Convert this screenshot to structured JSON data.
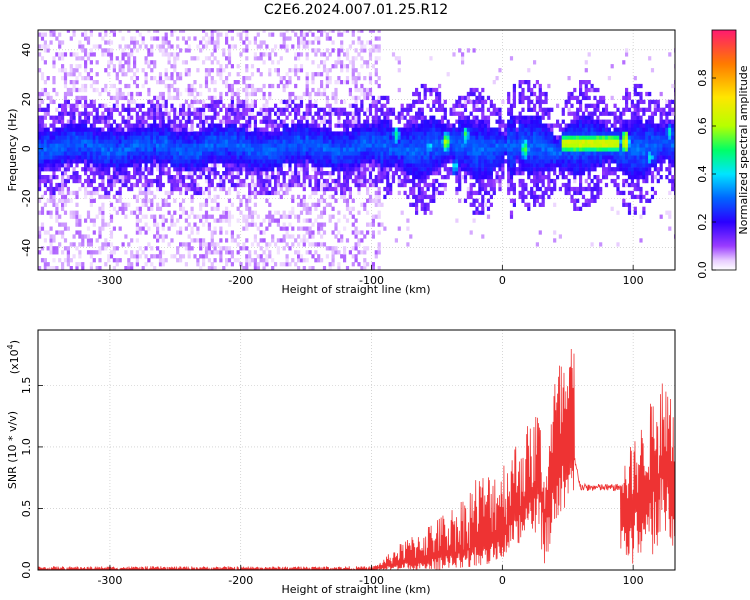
{
  "title": "C2E6.2024.007.01.25.R12",
  "colors": {
    "snr_trace": "#ee3333",
    "background": "#ffffff",
    "colormap": [
      "#ffffff",
      "#e8ccff",
      "#9a3cff",
      "#2a00ff",
      "#0066ff",
      "#00e5ff",
      "#00ff66",
      "#b6ff00",
      "#ffe600",
      "#ff7a00",
      "#ff1a70"
    ]
  },
  "chart_data": [
    {
      "type": "heatmap",
      "title": "C2E6.2024.007.01.25.R12",
      "xlabel": "Height of straight line (km)",
      "ylabel": "Frequency (Hz)",
      "xlim": [
        -355,
        132
      ],
      "ylim": [
        -49,
        48
      ],
      "xticks": [
        "-300",
        "-200",
        "-100",
        "0",
        "100"
      ],
      "yticks": [
        "-40",
        "-20",
        "0",
        "20",
        "40"
      ],
      "grid": true,
      "colorbar": {
        "label": "Normalized spectral amplitude",
        "range": [
          0.0,
          1.0
        ],
        "ticks": [
          "0.0",
          "0.2",
          "0.4",
          "0.6",
          "0.8"
        ]
      },
      "features": {
        "noise_cutoff_height": -95,
        "core_band_center_hz": 0,
        "core_band_halfwidth_hz": 8,
        "steady_segment": {
          "x": [
            45,
            88
          ],
          "freq_hz": 1.5,
          "amplitude": 0.7
        },
        "peaks": [
          {
            "x": -82,
            "freq_hz": 5,
            "amplitude": 0.55
          },
          {
            "x": -57,
            "freq_hz": 0,
            "amplitude": 0.5
          },
          {
            "x": -44,
            "freq_hz": 2,
            "amplitude": 0.7
          },
          {
            "x": -37,
            "freq_hz": -8,
            "amplitude": 0.5
          },
          {
            "x": -29,
            "freq_hz": 5,
            "amplitude": 0.55
          },
          {
            "x": 16,
            "freq_hz": -1,
            "amplitude": 0.65
          },
          {
            "x": 93,
            "freq_hz": 2,
            "amplitude": 0.85
          },
          {
            "x": 112,
            "freq_hz": -4,
            "amplitude": 0.5
          },
          {
            "x": 127,
            "freq_hz": 6,
            "amplitude": 0.5
          }
        ]
      }
    },
    {
      "type": "line",
      "xlabel": "Height of straight line (km)",
      "ylabel": "SNR (10 * v/v)",
      "y_scale_note": "(x10",
      "y_scale_exp": "4",
      "y_scale_close": ")",
      "xlim": [
        -355,
        132
      ],
      "ylim": [
        0.0,
        1.95
      ],
      "xticks": [
        "-300",
        "-200",
        "-100",
        "0",
        "100"
      ],
      "yticks": [
        "0.0",
        "0.5",
        "1.0",
        "1.5"
      ],
      "grid": true,
      "series": [
        {
          "x": [
            -355,
            -300,
            -200,
            -100,
            -95,
            -80,
            -60,
            -40,
            -30,
            -20,
            -10,
            0,
            10,
            20,
            28,
            32,
            40,
            45,
            50,
            55,
            60,
            75,
            90,
            95,
            100,
            110,
            120,
            132
          ],
          "y_min": [
            0.0,
            0.0,
            0.0,
            0.0,
            0.0,
            0.0,
            0.0,
            0.0,
            0.02,
            0.02,
            0.05,
            0.1,
            0.2,
            0.25,
            0.3,
            0.0,
            0.35,
            0.4,
            0.45,
            0.45,
            0.0,
            0.0,
            0.0,
            0.0,
            0.05,
            0.1,
            0.15,
            0.15
          ],
          "y_max": [
            0.03,
            0.03,
            0.03,
            0.03,
            0.05,
            0.2,
            0.35,
            0.5,
            0.6,
            0.78,
            0.8,
            0.9,
            1.05,
            1.2,
            1.35,
            0.8,
            1.6,
            1.75,
            1.7,
            1.95,
            0.85,
            0.72,
            0.72,
            0.95,
            1.05,
            1.25,
            1.6,
            1.55
          ],
          "mid_level": [
            0.0,
            0.0,
            0.0,
            0.0,
            0.02,
            0.05,
            0.08,
            0.12,
            0.15,
            0.2,
            0.25,
            0.3,
            0.45,
            0.55,
            0.65,
            0.4,
            0.75,
            0.85,
            0.85,
            0.9,
            0.67,
            0.67,
            0.67,
            0.5,
            0.55,
            0.65,
            0.75,
            0.75
          ]
        }
      ]
    }
  ]
}
